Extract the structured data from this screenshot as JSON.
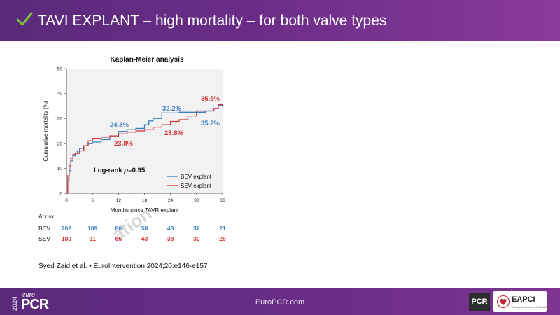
{
  "header": {
    "title": "TAVI EXPLANT – high mortality – for both valve types",
    "check_color": "#7ac142"
  },
  "footer": {
    "url": "EuroPCR.com",
    "logo_year": "2024",
    "logo_euro": "euro",
    "logo_pcr": "PCR",
    "pcr_badge": "PCR",
    "eapci": "EAPCI",
    "eapci_sub": "European Society of Cardiology"
  },
  "citation": "Syed Zaid et al. • EuroIntervention 2024;20:e146-e157",
  "chart_data": {
    "type": "line",
    "title": "Kaplan-Meier analysis",
    "xlabel": "Months since TAVR explant",
    "ylabel": "Cumulative mortality (%)",
    "xlim": [
      0,
      36
    ],
    "ylim": [
      0,
      50
    ],
    "xticks": [
      0,
      6,
      12,
      18,
      24,
      30,
      36
    ],
    "yticks": [
      0,
      10,
      20,
      30,
      40,
      50
    ],
    "legend": "bottom-right",
    "logrank_prefix": "Log-rank ",
    "logrank_p": "p",
    "logrank_value": "=0.95",
    "series": [
      {
        "name": "BEV explant",
        "color": "#3a7fc1",
        "x": [
          0,
          0.3,
          0.6,
          1,
          1.5,
          2,
          2.5,
          3,
          4,
          5,
          6,
          8,
          10,
          12,
          14,
          16,
          18,
          19,
          20,
          22,
          24,
          26,
          28,
          30,
          32,
          34,
          35,
          36
        ],
        "y": [
          0,
          5,
          9,
          13,
          15,
          16,
          17,
          18,
          19,
          20,
          20.5,
          21.5,
          23,
          24.8,
          25.5,
          26,
          27.5,
          29,
          30,
          32.2,
          32.2,
          32.5,
          32.5,
          32.5,
          33,
          34,
          35.2,
          35.2
        ]
      },
      {
        "name": "SEV explant",
        "color": "#d0333a",
        "x": [
          0,
          0.3,
          0.6,
          1,
          1.5,
          2,
          3,
          4,
          5,
          6,
          8,
          10,
          12,
          14,
          16,
          18,
          20,
          22,
          24,
          26,
          28,
          30,
          32,
          34,
          35,
          36
        ],
        "y": [
          0,
          7,
          11,
          14,
          15.5,
          16,
          17,
          19,
          21,
          22,
          22.5,
          23,
          23.8,
          24.5,
          25,
          25.5,
          26.5,
          27.5,
          28.8,
          29.5,
          31,
          33,
          33,
          34,
          35.5,
          35.5
        ]
      }
    ],
    "annotations": [
      {
        "text": "24.8%",
        "series": "BEV explant"
      },
      {
        "text": "32.2%",
        "series": "BEV explant"
      },
      {
        "text": "35.2%",
        "series": "BEV explant"
      },
      {
        "text": "23.8%",
        "series": "SEV explant"
      },
      {
        "text": "28.8%",
        "series": "SEV explant"
      },
      {
        "text": "35.5%",
        "series": "SEV explant"
      }
    ],
    "at_risk": {
      "label": "At risk",
      "rows": [
        {
          "name": "BEV",
          "color": "#3a7fc1",
          "values": [
            "202",
            "109",
            "80",
            "58",
            "43",
            "32",
            "21"
          ]
        },
        {
          "name": "SEV",
          "color": "#d0333a",
          "values": [
            "189",
            "91",
            "65",
            "43",
            "38",
            "30",
            "26"
          ]
        }
      ]
    },
    "watermark": "ation"
  }
}
